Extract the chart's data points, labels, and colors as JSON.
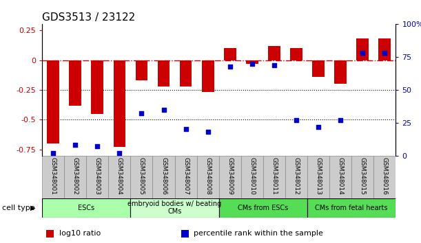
{
  "title": "GDS3513 / 23122",
  "samples": [
    "GSM348001",
    "GSM348002",
    "GSM348003",
    "GSM348004",
    "GSM348005",
    "GSM348006",
    "GSM348007",
    "GSM348008",
    "GSM348009",
    "GSM348010",
    "GSM348011",
    "GSM348012",
    "GSM348013",
    "GSM348014",
    "GSM348015",
    "GSM348016"
  ],
  "log10_ratio": [
    -0.7,
    -0.38,
    -0.45,
    -0.73,
    -0.17,
    -0.22,
    -0.22,
    -0.27,
    0.1,
    -0.03,
    0.12,
    0.1,
    -0.14,
    -0.2,
    0.18,
    0.18
  ],
  "percentile_rank": [
    2,
    8,
    7,
    2,
    32,
    35,
    20,
    18,
    68,
    70,
    69,
    27,
    22,
    27,
    78,
    78
  ],
  "bar_color": "#cc0000",
  "dot_color": "#0000cc",
  "background_color": "#ffffff",
  "ylim_left": [
    -0.8,
    0.3
  ],
  "ylim_right": [
    0,
    100
  ],
  "yticks_left": [
    -0.75,
    -0.5,
    -0.25,
    0,
    0.25
  ],
  "yticks_right": [
    0,
    25,
    50,
    75,
    100
  ],
  "ytick_labels_right": [
    "0",
    "25",
    "50",
    "75",
    "100%"
  ],
  "dotted_lines": [
    -0.25,
    -0.5
  ],
  "cell_groups": [
    {
      "label": "ESCs",
      "start": 0,
      "end": 3,
      "color": "#aaffaa"
    },
    {
      "label": "embryoid bodies w/ beating\nCMs",
      "start": 4,
      "end": 7,
      "color": "#ccffcc"
    },
    {
      "label": "CMs from ESCs",
      "start": 8,
      "end": 11,
      "color": "#55dd55"
    },
    {
      "label": "CMs from fetal hearts",
      "start": 12,
      "end": 15,
      "color": "#55dd55"
    }
  ],
  "legend_items": [
    {
      "color": "#cc0000",
      "label": "log10 ratio"
    },
    {
      "color": "#0000cc",
      "label": "percentile rank within the sample"
    }
  ],
  "cell_type_label": "cell type",
  "bar_width": 0.55
}
